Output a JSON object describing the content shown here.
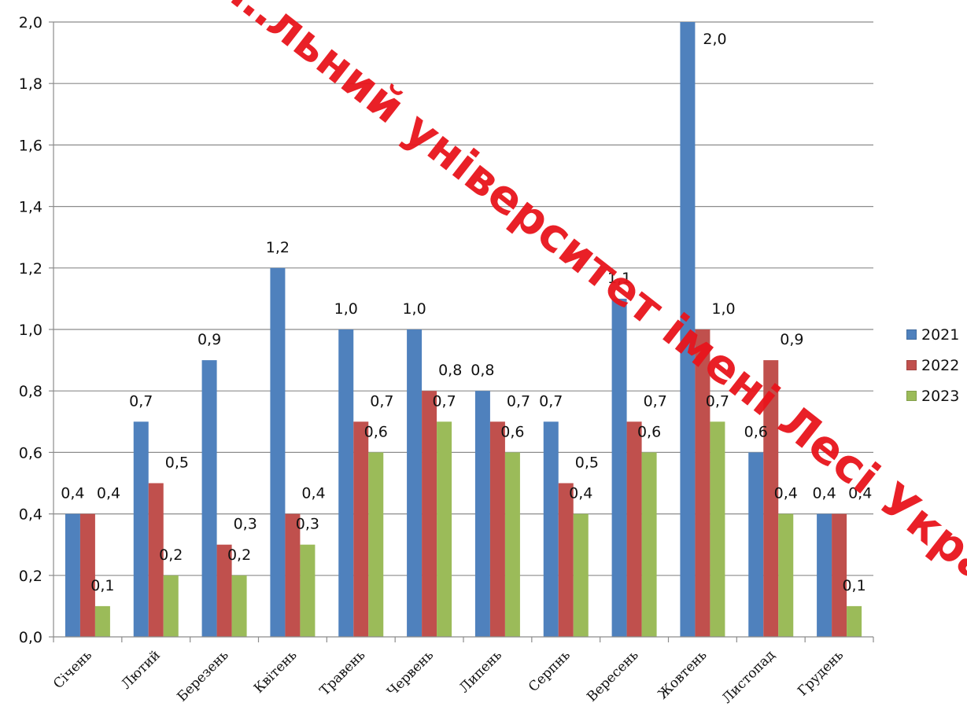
{
  "chart_data": {
    "type": "bar",
    "categories": [
      "Січень",
      "Лютий",
      "Березень",
      "Квітень",
      "Травень",
      "Червень",
      "Липень",
      "Серпнь",
      "Вересень",
      "Жовтень",
      "Листопад",
      "Грудень"
    ],
    "series": [
      {
        "name": "2021",
        "color": "#4f81bd",
        "values": [
          0.4,
          0.7,
          0.9,
          1.2,
          1.0,
          1.0,
          0.8,
          0.7,
          1.1,
          2.0,
          0.6,
          0.4
        ]
      },
      {
        "name": "2022",
        "color": "#c0504d",
        "values": [
          0.4,
          0.5,
          0.3,
          0.4,
          0.7,
          0.8,
          0.7,
          0.5,
          0.7,
          1.0,
          0.9,
          0.4
        ]
      },
      {
        "name": "2023",
        "color": "#9bbb59",
        "values": [
          0.1,
          0.2,
          0.2,
          0.3,
          0.6,
          0.7,
          0.6,
          0.4,
          0.6,
          0.7,
          0.4,
          0.1
        ]
      }
    ],
    "data_labels": [
      [
        "0,4",
        "0,7",
        "0,9",
        "1,2",
        "1,0",
        "1,0",
        "0,8",
        "0,7",
        "1,1",
        "2,0",
        "0,6",
        "0,4"
      ],
      [
        "0,4",
        "0,5",
        "0,3",
        "0,4",
        "0,7",
        "0,8",
        "0,7",
        "0,5",
        "0,7",
        "1,0",
        "0,9",
        "0,4"
      ],
      [
        "0,1",
        "0,2",
        "0,2",
        "0,3",
        "0,6",
        "0,7",
        "0,6",
        "0,4",
        "0,6",
        "0,7",
        "0,4",
        "0,1"
      ]
    ],
    "ylim": [
      0,
      2.0
    ],
    "y_ticks": [
      "0,0",
      "0,2",
      "0,4",
      "0,6",
      "0,8",
      "1,0",
      "1,2",
      "1,4",
      "1,6",
      "1,8",
      "2,0"
    ],
    "grid": true,
    "legend_position": "right",
    "title": "",
    "xlabel": "",
    "ylabel": ""
  },
  "watermark": {
    "text": "…льний університет імені Лесі Українки",
    "color": "#e8141b"
  }
}
